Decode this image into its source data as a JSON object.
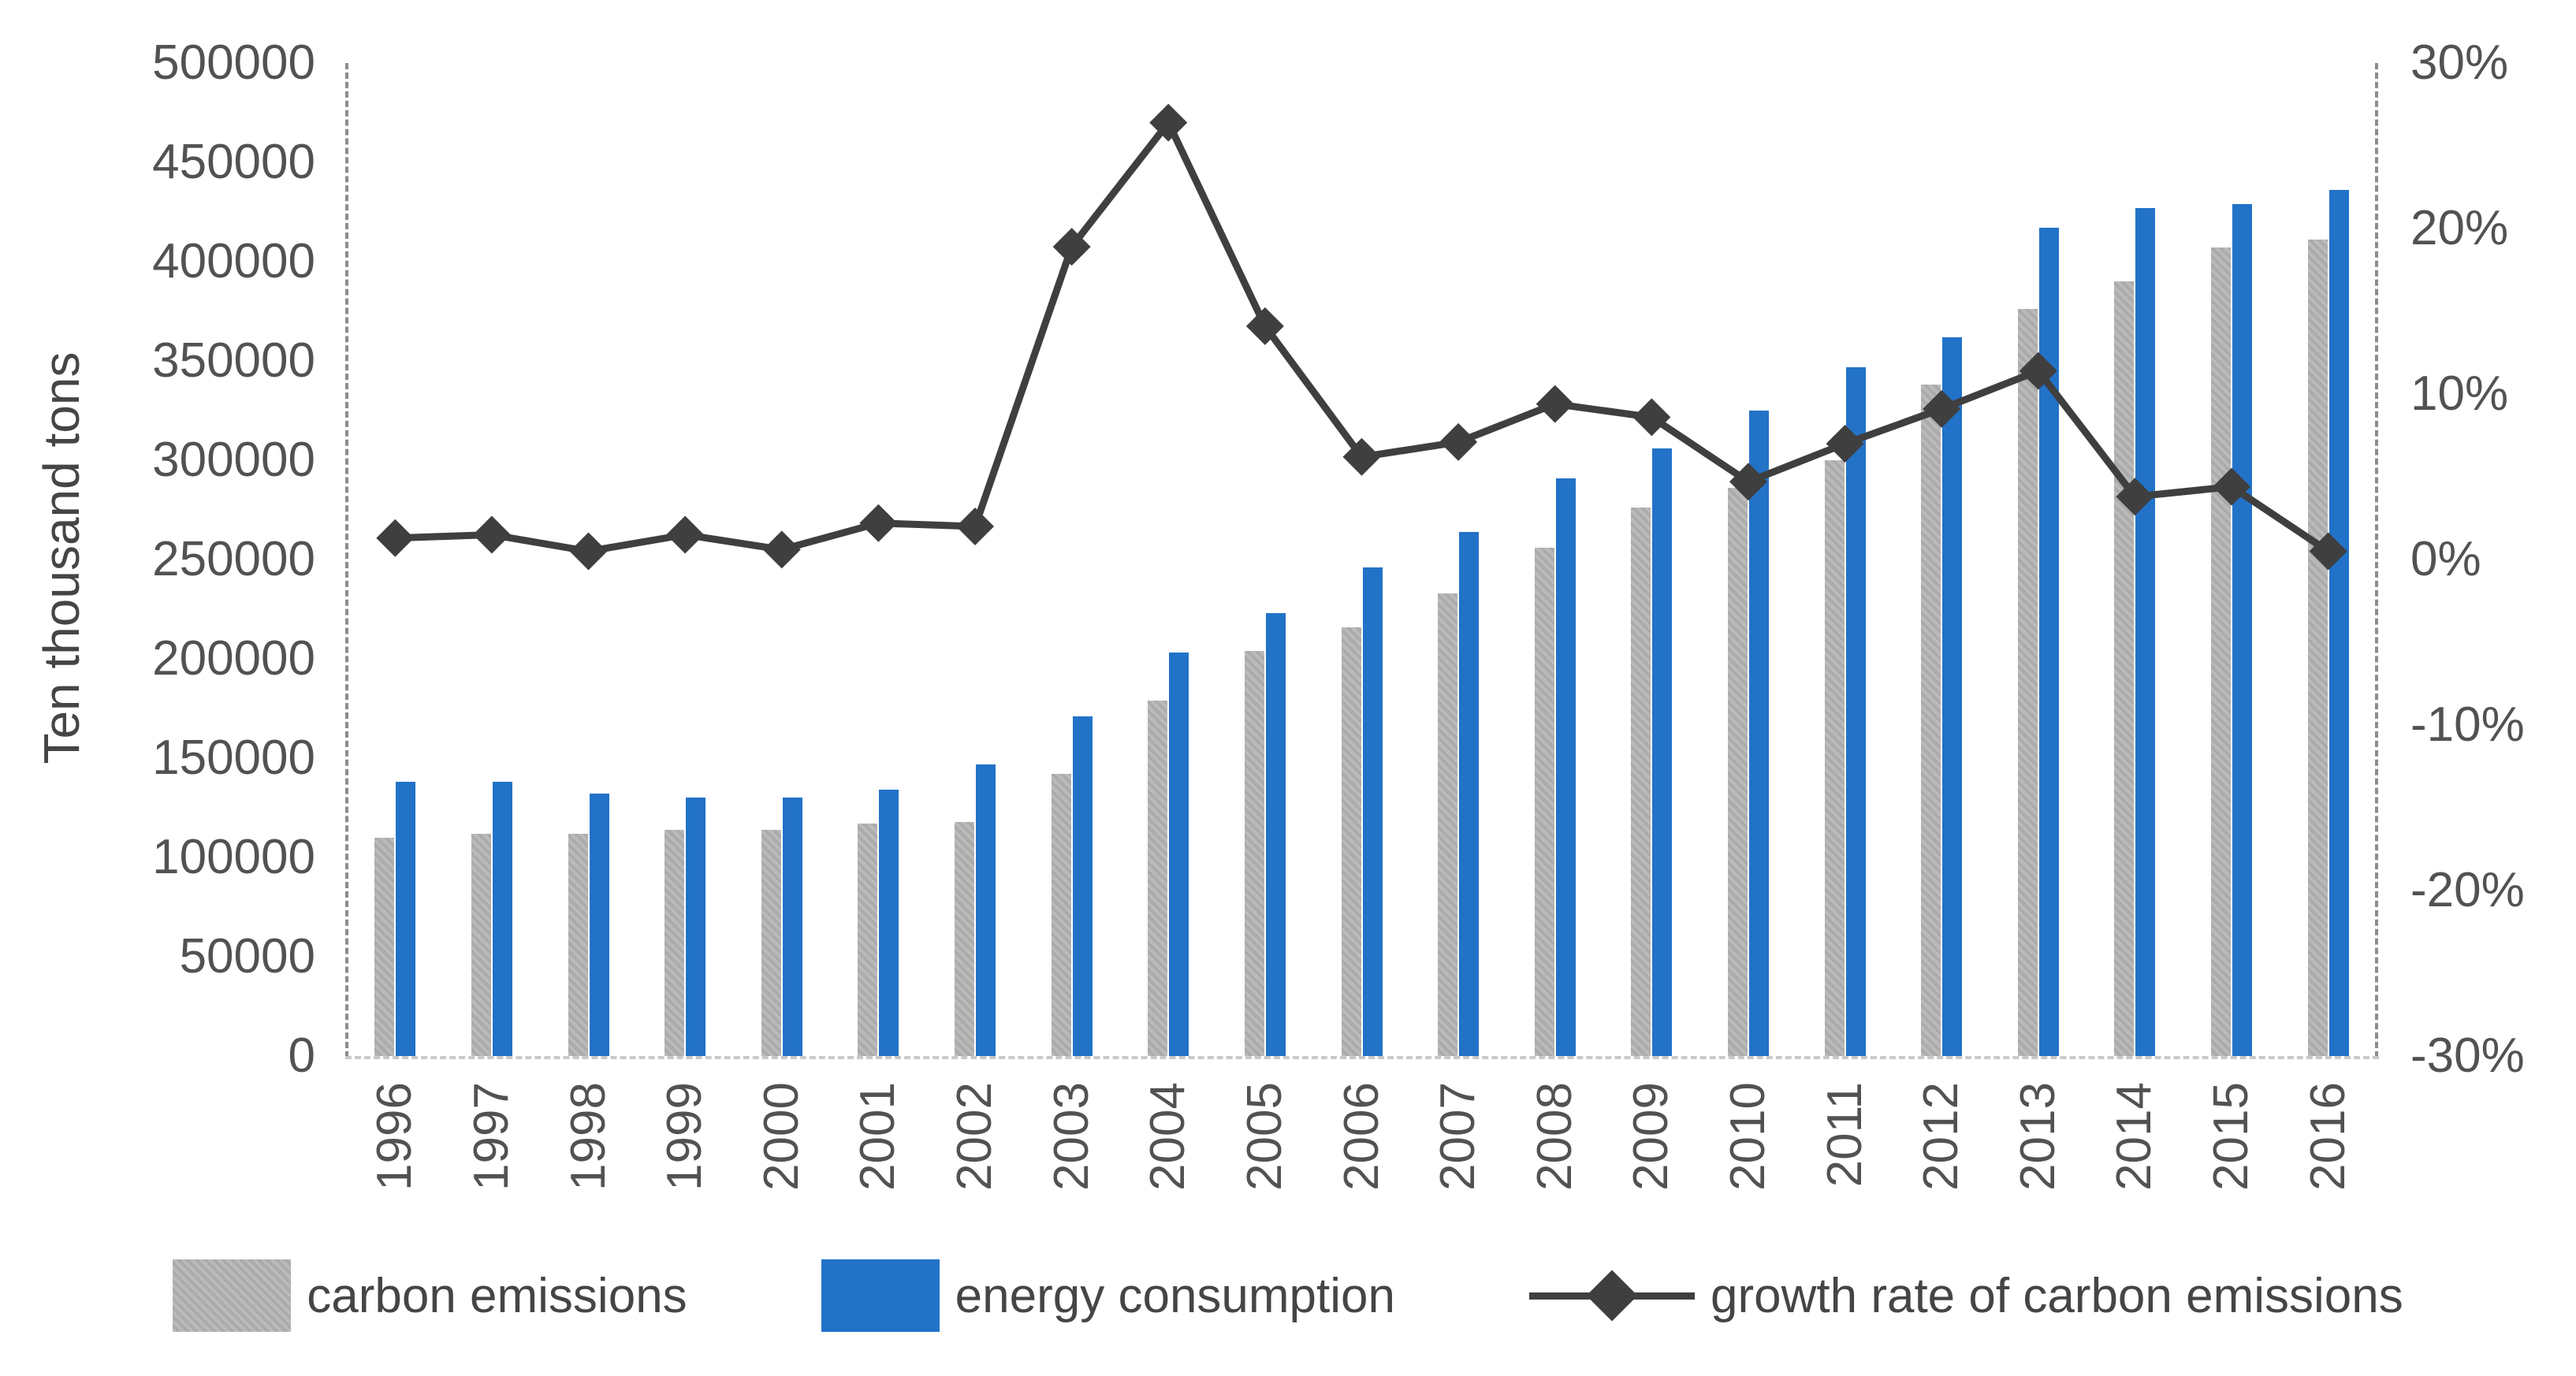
{
  "chart_data": {
    "type": "bar",
    "subtype": "grouped-bars-with-line-combo",
    "categories": [
      "1996",
      "1997",
      "1998",
      "1999",
      "2000",
      "2001",
      "2002",
      "2003",
      "2004",
      "2005",
      "2006",
      "2007",
      "2008",
      "2009",
      "2010",
      "2011",
      "2012",
      "2013",
      "2014",
      "2015",
      "2016"
    ],
    "series": [
      {
        "name": "carbon emissions",
        "type": "bar",
        "axis": "left",
        "color": "#ababab",
        "values": [
          110000,
          112000,
          112000,
          114000,
          114000,
          117000,
          118000,
          142000,
          179000,
          204000,
          216000,
          233000,
          256000,
          276000,
          286000,
          300000,
          338000,
          376000,
          390000,
          407000,
          411000
        ]
      },
      {
        "name": "energy consumption",
        "type": "bar",
        "axis": "left",
        "color": "#2272c8",
        "values": [
          138000,
          138000,
          132000,
          130000,
          130000,
          134000,
          147000,
          171000,
          203000,
          223000,
          246000,
          264000,
          291000,
          306000,
          325000,
          347000,
          362000,
          417000,
          427000,
          429000,
          436000
        ]
      },
      {
        "name": "growth rate of carbon emissions",
        "type": "line",
        "axis": "right",
        "color": "#3f3f3f",
        "marker": "diamond",
        "values_pct": [
          1.3,
          1.5,
          0.5,
          1.5,
          0.6,
          2.2,
          2.0,
          18.9,
          26.4,
          14.1,
          6.2,
          7.1,
          9.4,
          8.6,
          4.7,
          7.0,
          9.1,
          11.4,
          3.8,
          4.4,
          0.5
        ]
      }
    ],
    "left_axis": {
      "label": "Ten thousand tons",
      "min": 0,
      "max": 500000,
      "step": 50000,
      "tick_labels": [
        "500000",
        "450000",
        "400000",
        "350000",
        "300000",
        "250000",
        "200000",
        "150000",
        "100000",
        "50000",
        "0"
      ]
    },
    "right_axis": {
      "min": -30,
      "max": 30,
      "step": 10,
      "tick_labels": [
        "30%",
        "20%",
        "10%",
        "0%",
        "-10%",
        "-20%",
        "-30%"
      ]
    },
    "grid": "off",
    "legend_position": "bottom",
    "legend": [
      "carbon emissions",
      "energy consumption",
      "growth rate of carbon emissions"
    ]
  }
}
